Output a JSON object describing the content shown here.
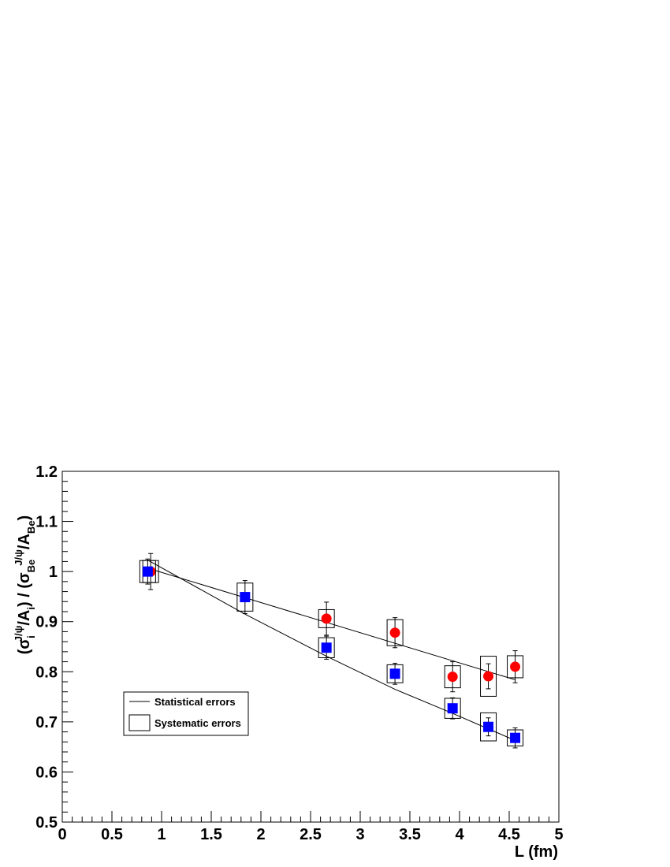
{
  "chart_data": {
    "type": "scatter",
    "xlabel": "L (fm)",
    "ylabel_parts": [
      "(σ",
      "i",
      "J/ψ",
      "/A",
      "i",
      ") / (σ",
      "Be",
      "J/ψ",
      "/A",
      "Be",
      ")"
    ],
    "xlim": [
      0,
      5
    ],
    "ylim": [
      0.5,
      1.2
    ],
    "xticks": [
      "0",
      "0.5",
      "1",
      "1.5",
      "2",
      "2.5",
      "3",
      "3.5",
      "4",
      "4.5",
      "5"
    ],
    "yticks": [
      "0.5",
      "0.6",
      "0.7",
      "0.8",
      "0.9",
      "1",
      "1.1",
      "1.2"
    ],
    "grid": false,
    "legend_position": "lower-left",
    "legend": [
      {
        "label": "Statistical errors",
        "symbol": "line"
      },
      {
        "label": "Systematic errors",
        "symbol": "box"
      }
    ],
    "series": [
      {
        "marker": "circle",
        "color": "#ff0000",
        "points": [
          {
            "x": 0.89,
            "y": 1.0,
            "stat": 0.036,
            "sys": 0.022
          },
          {
            "x": 2.66,
            "y": 0.906,
            "stat": 0.033,
            "sys": 0.018
          },
          {
            "x": 3.35,
            "y": 0.878,
            "stat": 0.03,
            "sys": 0.026
          },
          {
            "x": 3.93,
            "y": 0.79,
            "stat": 0.03,
            "sys": 0.022
          },
          {
            "x": 4.29,
            "y": 0.791,
            "stat": 0.025,
            "sys": 0.04
          },
          {
            "x": 4.56,
            "y": 0.81,
            "stat": 0.032,
            "sys": 0.022
          }
        ],
        "fit": [
          [
            0.89,
            1.005
          ],
          [
            4.56,
            0.784
          ]
        ]
      },
      {
        "marker": "square",
        "color": "#0000ff",
        "points": [
          {
            "x": 0.86,
            "y": 1.0,
            "stat": 0.025,
            "sys": 0.022
          },
          {
            "x": 1.84,
            "y": 0.949,
            "stat": 0.033,
            "sys": 0.028
          },
          {
            "x": 2.66,
            "y": 0.848,
            "stat": 0.023,
            "sys": 0.02
          },
          {
            "x": 3.35,
            "y": 0.796,
            "stat": 0.021,
            "sys": 0.018
          },
          {
            "x": 3.93,
            "y": 0.727,
            "stat": 0.021,
            "sys": 0.02
          },
          {
            "x": 4.29,
            "y": 0.69,
            "stat": 0.018,
            "sys": 0.028
          },
          {
            "x": 4.56,
            "y": 0.668,
            "stat": 0.02,
            "sys": 0.016
          }
        ],
        "fit": [
          [
            0.86,
            1.023
          ],
          [
            1.84,
            0.915
          ],
          [
            2.66,
            0.831
          ],
          [
            3.35,
            0.765
          ],
          [
            3.93,
            0.717
          ],
          [
            4.29,
            0.686
          ],
          [
            4.56,
            0.663
          ]
        ]
      }
    ]
  }
}
